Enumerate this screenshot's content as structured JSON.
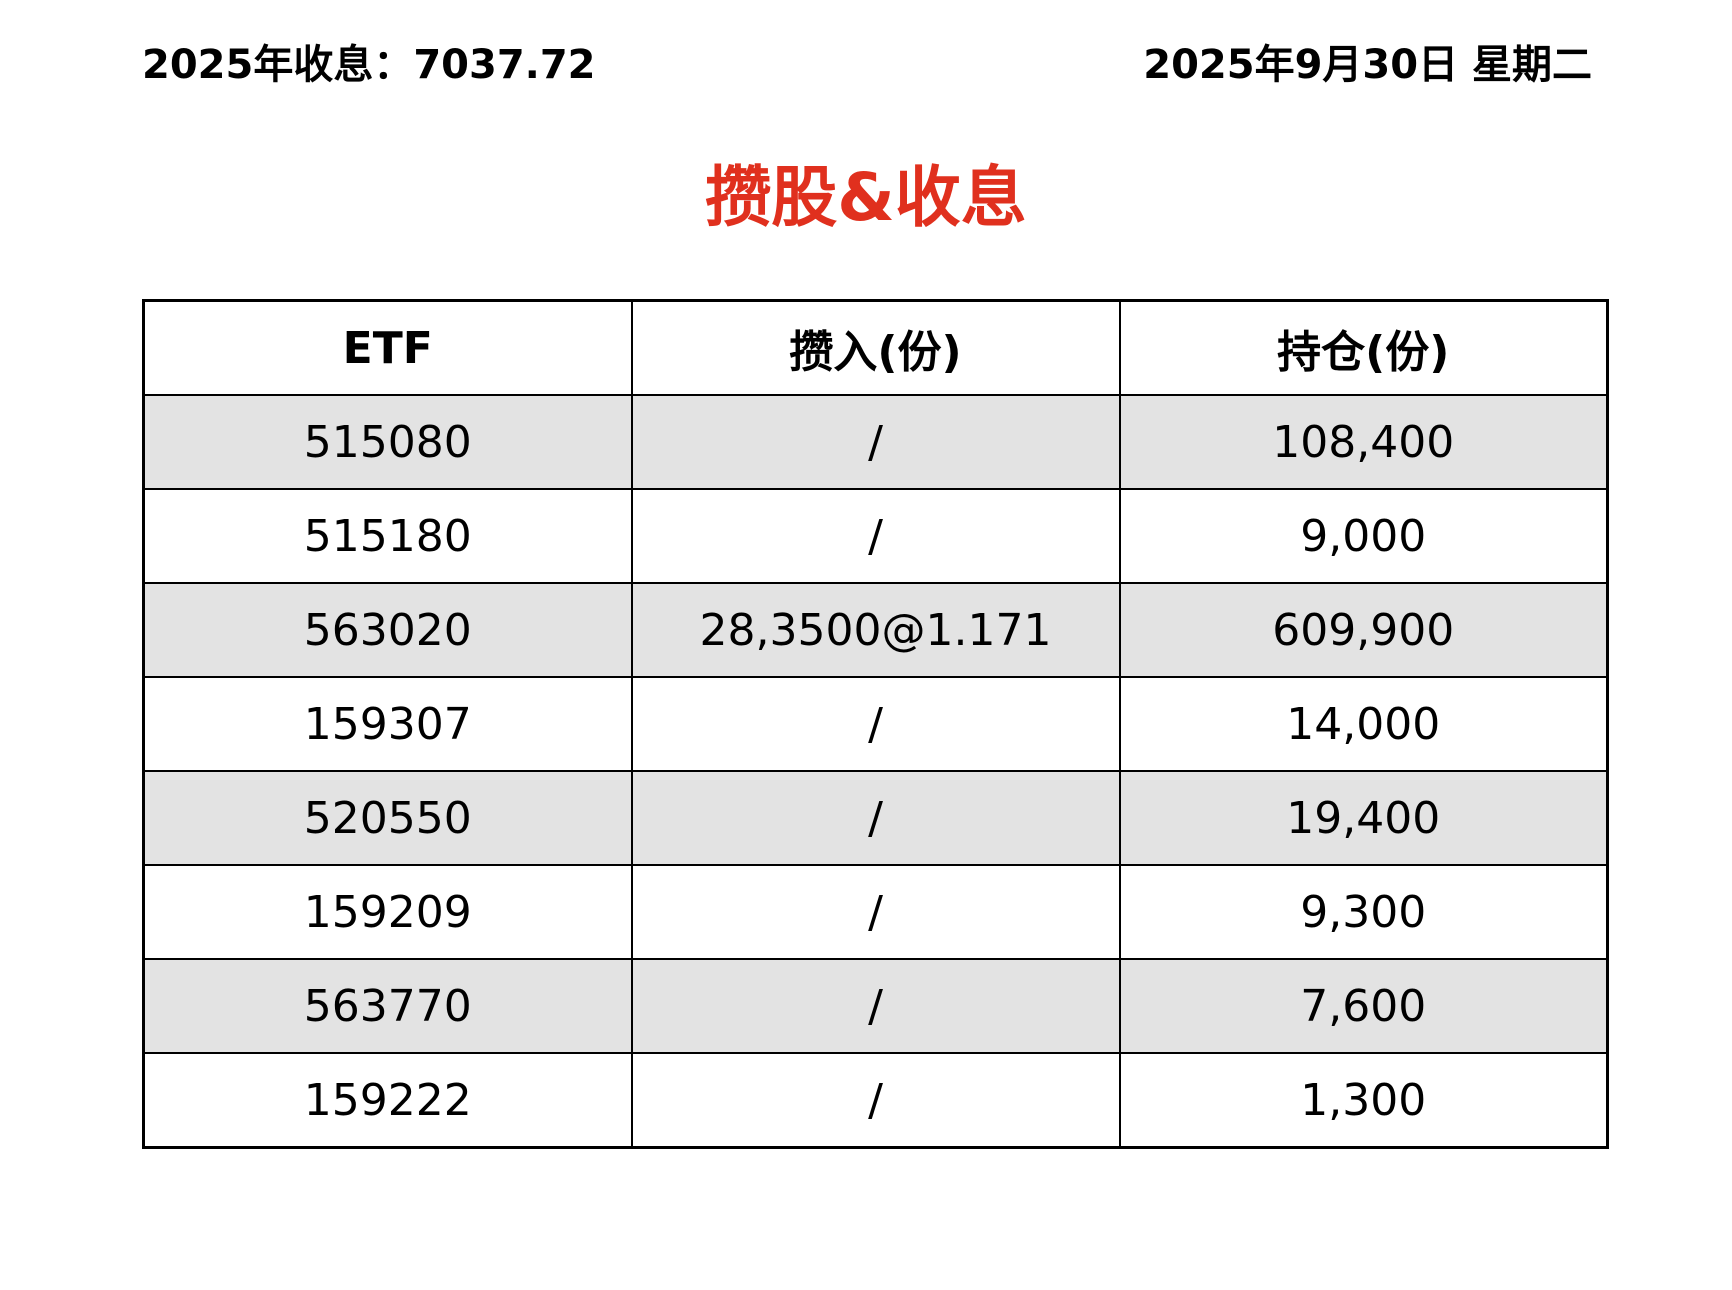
{
  "header": {
    "income": "2025年收息：7037.72",
    "date": "2025年9月30日 星期二"
  },
  "title": "攒股&收息",
  "title_color": "#e0301e",
  "table": {
    "columns": [
      "ETF",
      "攒入(份)",
      "持仓(份)"
    ],
    "rows": [
      [
        "515080",
        "/",
        "108,400"
      ],
      [
        "515180",
        "/",
        "9,000"
      ],
      [
        "563020",
        "28,3500@1.171",
        "609,900"
      ],
      [
        "159307",
        "/",
        "14,000"
      ],
      [
        "520550",
        "/",
        "19,400"
      ],
      [
        "159209",
        "/",
        "9,300"
      ],
      [
        "563770",
        "/",
        "7,600"
      ],
      [
        "159222",
        "/",
        "1,300"
      ]
    ]
  }
}
